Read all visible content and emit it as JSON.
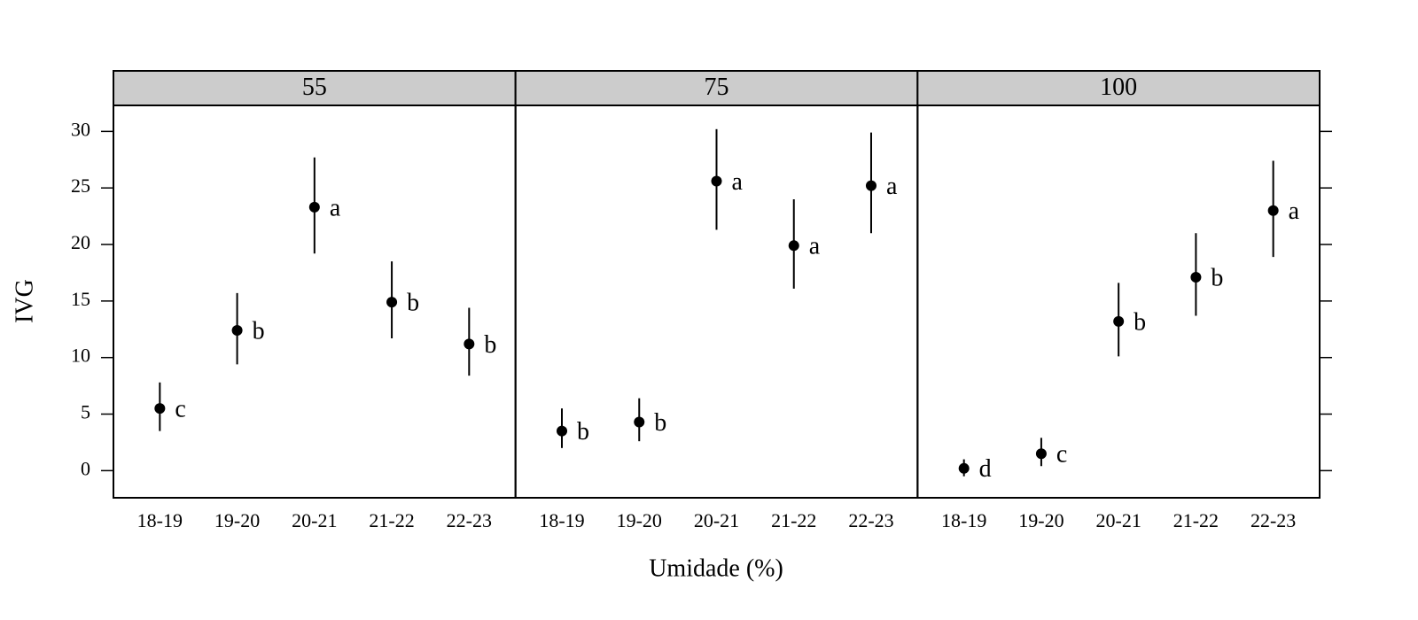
{
  "chart_data": {
    "type": "pointrange",
    "ylabel": "IVG",
    "xlabel": "Umidade (%)",
    "categories": [
      "18-19",
      "19-20",
      "20-21",
      "21-22",
      "22-23"
    ],
    "ylim": [
      -2.4,
      32.3
    ],
    "yticks": [
      0,
      5,
      10,
      15,
      20,
      25,
      30
    ],
    "color": "#000000",
    "strip_color": "#cccccc",
    "panels": [
      {
        "title": "55",
        "values": [
          5.5,
          12.4,
          23.3,
          14.9,
          11.2
        ],
        "lower": [
          3.5,
          9.4,
          19.2,
          11.7,
          8.4
        ],
        "upper": [
          7.8,
          15.7,
          27.7,
          18.5,
          14.4
        ],
        "letters": [
          "c",
          "b",
          "a",
          "b",
          "b"
        ]
      },
      {
        "title": "75",
        "values": [
          3.5,
          4.3,
          25.6,
          19.9,
          25.2
        ],
        "lower": [
          2.0,
          2.6,
          21.3,
          16.1,
          21.0
        ],
        "upper": [
          5.5,
          6.4,
          30.2,
          24.0,
          29.9
        ],
        "letters": [
          "b",
          "b",
          "a",
          "a",
          "a"
        ]
      },
      {
        "title": "100",
        "values": [
          0.2,
          1.5,
          13.2,
          17.1,
          23.0
        ],
        "lower": [
          -0.5,
          0.4,
          10.1,
          13.7,
          18.9
        ],
        "upper": [
          1.0,
          2.9,
          16.6,
          21.0,
          27.4
        ],
        "letters": [
          "d",
          "c",
          "b",
          "b",
          "a"
        ]
      }
    ]
  }
}
